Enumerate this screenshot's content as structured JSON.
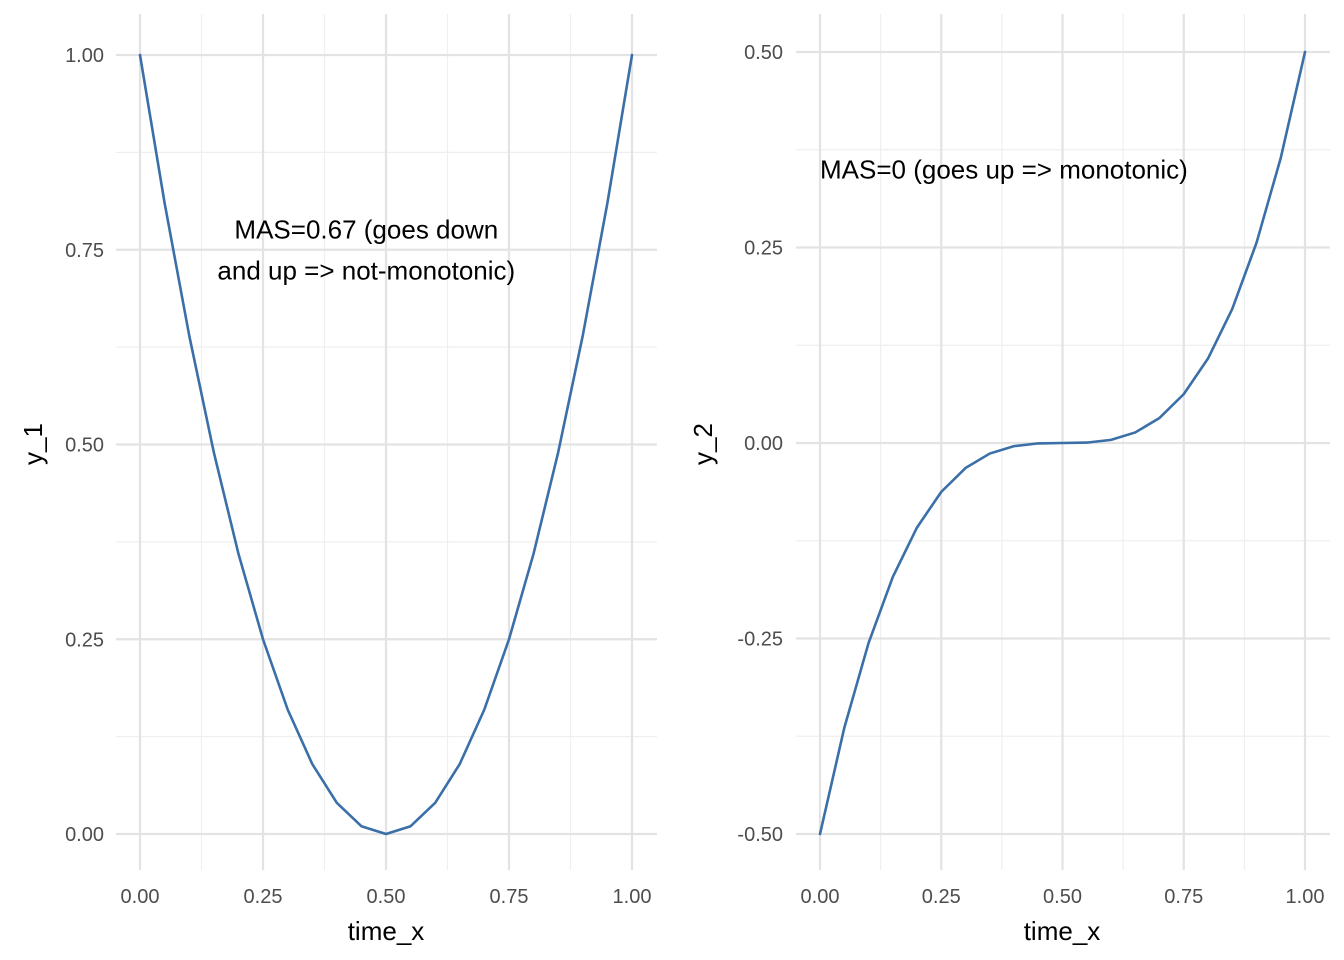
{
  "colors": {
    "line": "#3a6fa8",
    "grid_major": "#e3e3e3",
    "grid_minor": "#efefef"
  },
  "chart_data": [
    {
      "type": "line",
      "xlabel": "time_x",
      "ylabel": "y_1",
      "xlim": [
        0,
        1
      ],
      "ylim": [
        0,
        1
      ],
      "x_ticks": [
        0,
        0.25,
        0.5,
        0.75,
        1
      ],
      "x_tick_labels": [
        "0.00",
        "0.25",
        "0.50",
        "0.75",
        "1.00"
      ],
      "y_ticks": [
        0,
        0.25,
        0.5,
        0.75,
        1
      ],
      "y_tick_labels": [
        "0.00",
        "0.25",
        "0.50",
        "0.75",
        "1.00"
      ],
      "grid": true,
      "annotation": {
        "lines": [
          "MAS=0.67 (goes down",
          "and up => not-monotonic)"
        ],
        "x": 0.46,
        "y": 0.75
      },
      "series": [
        {
          "x": [
            0,
            0.05,
            0.1,
            0.15,
            0.2,
            0.25,
            0.3,
            0.35,
            0.4,
            0.45,
            0.5,
            0.55,
            0.6,
            0.65,
            0.7,
            0.75,
            0.8,
            0.85,
            0.9,
            0.95,
            1
          ],
          "values": [
            1,
            0.81,
            0.64,
            0.49,
            0.36,
            0.25,
            0.16,
            0.09,
            0.04,
            0.01,
            0,
            0.01,
            0.04,
            0.09,
            0.16,
            0.25,
            0.36,
            0.49,
            0.64,
            0.81,
            1
          ]
        }
      ]
    },
    {
      "type": "line",
      "xlabel": "time_x",
      "ylabel": "y_2",
      "xlim": [
        0,
        1
      ],
      "ylim": [
        -0.5,
        0.5
      ],
      "x_ticks": [
        0,
        0.25,
        0.5,
        0.75,
        1
      ],
      "x_tick_labels": [
        "0.00",
        "0.25",
        "0.50",
        "0.75",
        "1.00"
      ],
      "y_ticks": [
        -0.5,
        -0.25,
        0,
        0.25,
        0.5
      ],
      "y_tick_labels": [
        "-0.50",
        "-0.25",
        "0.00",
        "0.25",
        "0.50"
      ],
      "grid": true,
      "annotation": {
        "lines": [
          "MAS=0 (goes up => monotonic)"
        ],
        "x": 0,
        "y": 0.35
      },
      "series": [
        {
          "x": [
            0,
            0.05,
            0.1,
            0.15,
            0.2,
            0.25,
            0.3,
            0.35,
            0.4,
            0.45,
            0.5,
            0.55,
            0.6,
            0.65,
            0.7,
            0.75,
            0.8,
            0.85,
            0.9,
            0.95,
            1
          ],
          "values": [
            -0.5,
            -0.3645,
            -0.256,
            -0.1715,
            -0.108,
            -0.0625,
            -0.032,
            -0.0135,
            -0.004,
            -0.0005,
            0,
            0.0005,
            0.004,
            0.0135,
            0.032,
            0.0625,
            0.108,
            0.1715,
            0.256,
            0.3645,
            0.5
          ]
        }
      ]
    }
  ]
}
